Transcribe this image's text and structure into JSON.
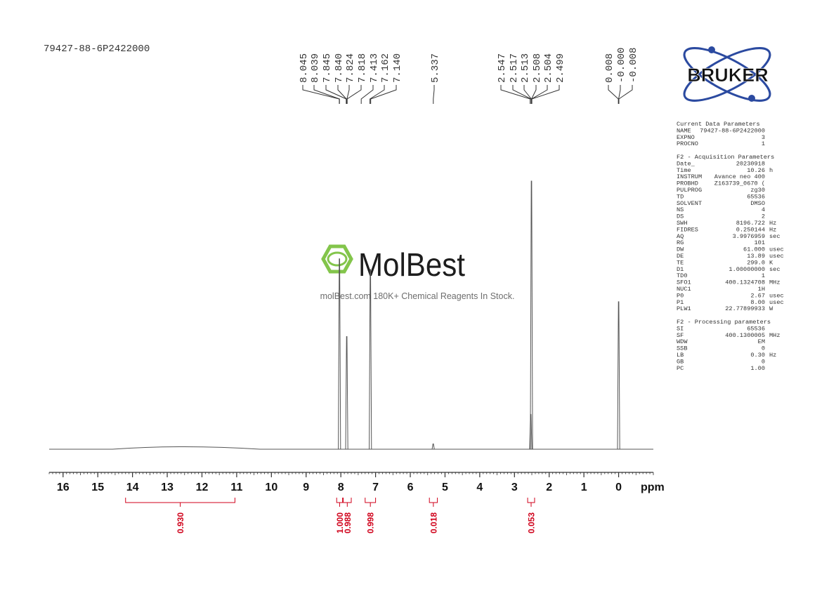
{
  "chart_data": {
    "type": "nmr",
    "title": "79427-88-6P2422000",
    "x_label": "ppm",
    "xlim": [
      16.4,
      -1.0
    ],
    "xticks": [
      16,
      15,
      14,
      13,
      12,
      11,
      10,
      9,
      8,
      7,
      6,
      5,
      4,
      3,
      2,
      1,
      0
    ],
    "ylim": [
      0,
      100
    ],
    "color": "#555555",
    "x": [
      8.04,
      7.83,
      7.15,
      5.34,
      2.53,
      2.51,
      0.0
    ],
    "values": [
      71,
      42,
      67,
      2,
      13,
      100,
      55
    ],
    "peak_labels": [
      {
        "value": 8.045,
        "label": "8.045"
      },
      {
        "value": 8.039,
        "label": "8.039"
      },
      {
        "value": 7.845,
        "label": "7.845"
      },
      {
        "value": 7.84,
        "label": "7.840"
      },
      {
        "value": 7.824,
        "label": "7.824"
      },
      {
        "value": 7.818,
        "label": "7.818"
      },
      {
        "value": 7.413,
        "label": "7.413"
      },
      {
        "value": 7.162,
        "label": "7.162"
      },
      {
        "value": 7.14,
        "label": "7.140"
      },
      {
        "value": 5.337,
        "label": "5.337"
      },
      {
        "value": 2.547,
        "label": "2.547"
      },
      {
        "value": 2.517,
        "label": "2.517"
      },
      {
        "value": 2.513,
        "label": "2.513"
      },
      {
        "value": 2.508,
        "label": "2.508"
      },
      {
        "value": 2.504,
        "label": "2.504"
      },
      {
        "value": 2.499,
        "label": "2.499"
      },
      {
        "value": 0.008,
        "label": "0.008"
      },
      {
        "value": 0,
        "label": "-0.000"
      },
      {
        "value": -0.008,
        "label": "-0.008"
      }
    ],
    "integrals": [
      {
        "from": 14.2,
        "to": 11.05,
        "value": 0.93,
        "label": "0.930"
      },
      {
        "from": 8.12,
        "to": 7.95,
        "value": 1.0,
        "label": "1.000"
      },
      {
        "from": 7.93,
        "to": 7.7,
        "value": 0.988,
        "label": "0.988"
      },
      {
        "from": 7.3,
        "to": 7.0,
        "value": 0.998,
        "label": "0.998"
      },
      {
        "from": 5.45,
        "to": 5.22,
        "value": 0.018,
        "label": "0.018"
      },
      {
        "from": 2.62,
        "to": 2.42,
        "value": 0.053,
        "label": "0.053"
      }
    ],
    "integral_color": "#d0021b"
  },
  "logo": {
    "text": "BRUKER"
  },
  "watermark": {
    "brand": "MolBest",
    "tagline": "molBest.com 180K+ Chemical Reagents In Stock."
  },
  "parameters": [
    {
      "title": "Current Data Parameters",
      "rows": [
        [
          "NAME",
          "79427-88-6P2422000"
        ],
        [
          "EXPNO",
          "3"
        ],
        [
          "PROCNO",
          "1"
        ]
      ]
    },
    {
      "title": "F2 - Acquisition Parameters",
      "rows": [
        [
          "Date_",
          "20230918"
        ],
        [
          "Time",
          "10.26",
          "h"
        ],
        [
          "INSTRUM",
          "Avance neo 400"
        ],
        [
          "PROBHD",
          "Z163739_0670 ("
        ],
        [
          "PULPROG",
          "zg30"
        ],
        [
          "TD",
          "65536"
        ],
        [
          "SOLVENT",
          "DMSO"
        ],
        [
          "NS",
          "4"
        ],
        [
          "DS",
          "2"
        ],
        [
          "SWH",
          "8196.722",
          "Hz"
        ],
        [
          "FIDRES",
          "0.250144",
          "Hz"
        ],
        [
          "AQ",
          "3.9976959",
          "sec"
        ],
        [
          "RG",
          "101"
        ],
        [
          "DW",
          "61.000",
          "usec"
        ],
        [
          "DE",
          "13.89",
          "usec"
        ],
        [
          "TE",
          "299.0",
          "K"
        ],
        [
          "D1",
          "1.00000000",
          "sec"
        ],
        [
          "TD0",
          "1"
        ],
        [
          "SFO1",
          "400.1324708",
          "MHz"
        ],
        [
          "NUC1",
          "1H"
        ],
        [
          "P0",
          "2.67",
          "usec"
        ],
        [
          "P1",
          "8.00",
          "usec"
        ],
        [
          "PLW1",
          "22.77899933",
          "W"
        ]
      ]
    },
    {
      "title": "F2 - Processing parameters",
      "rows": [
        [
          "SI",
          "65536"
        ],
        [
          "SF",
          "400.1300005",
          "MHz"
        ],
        [
          "WDW",
          "EM"
        ],
        [
          "SSB",
          "0"
        ],
        [
          "LB",
          "0.30",
          "Hz"
        ],
        [
          "GB",
          "0"
        ],
        [
          "PC",
          "1.00"
        ]
      ]
    }
  ]
}
